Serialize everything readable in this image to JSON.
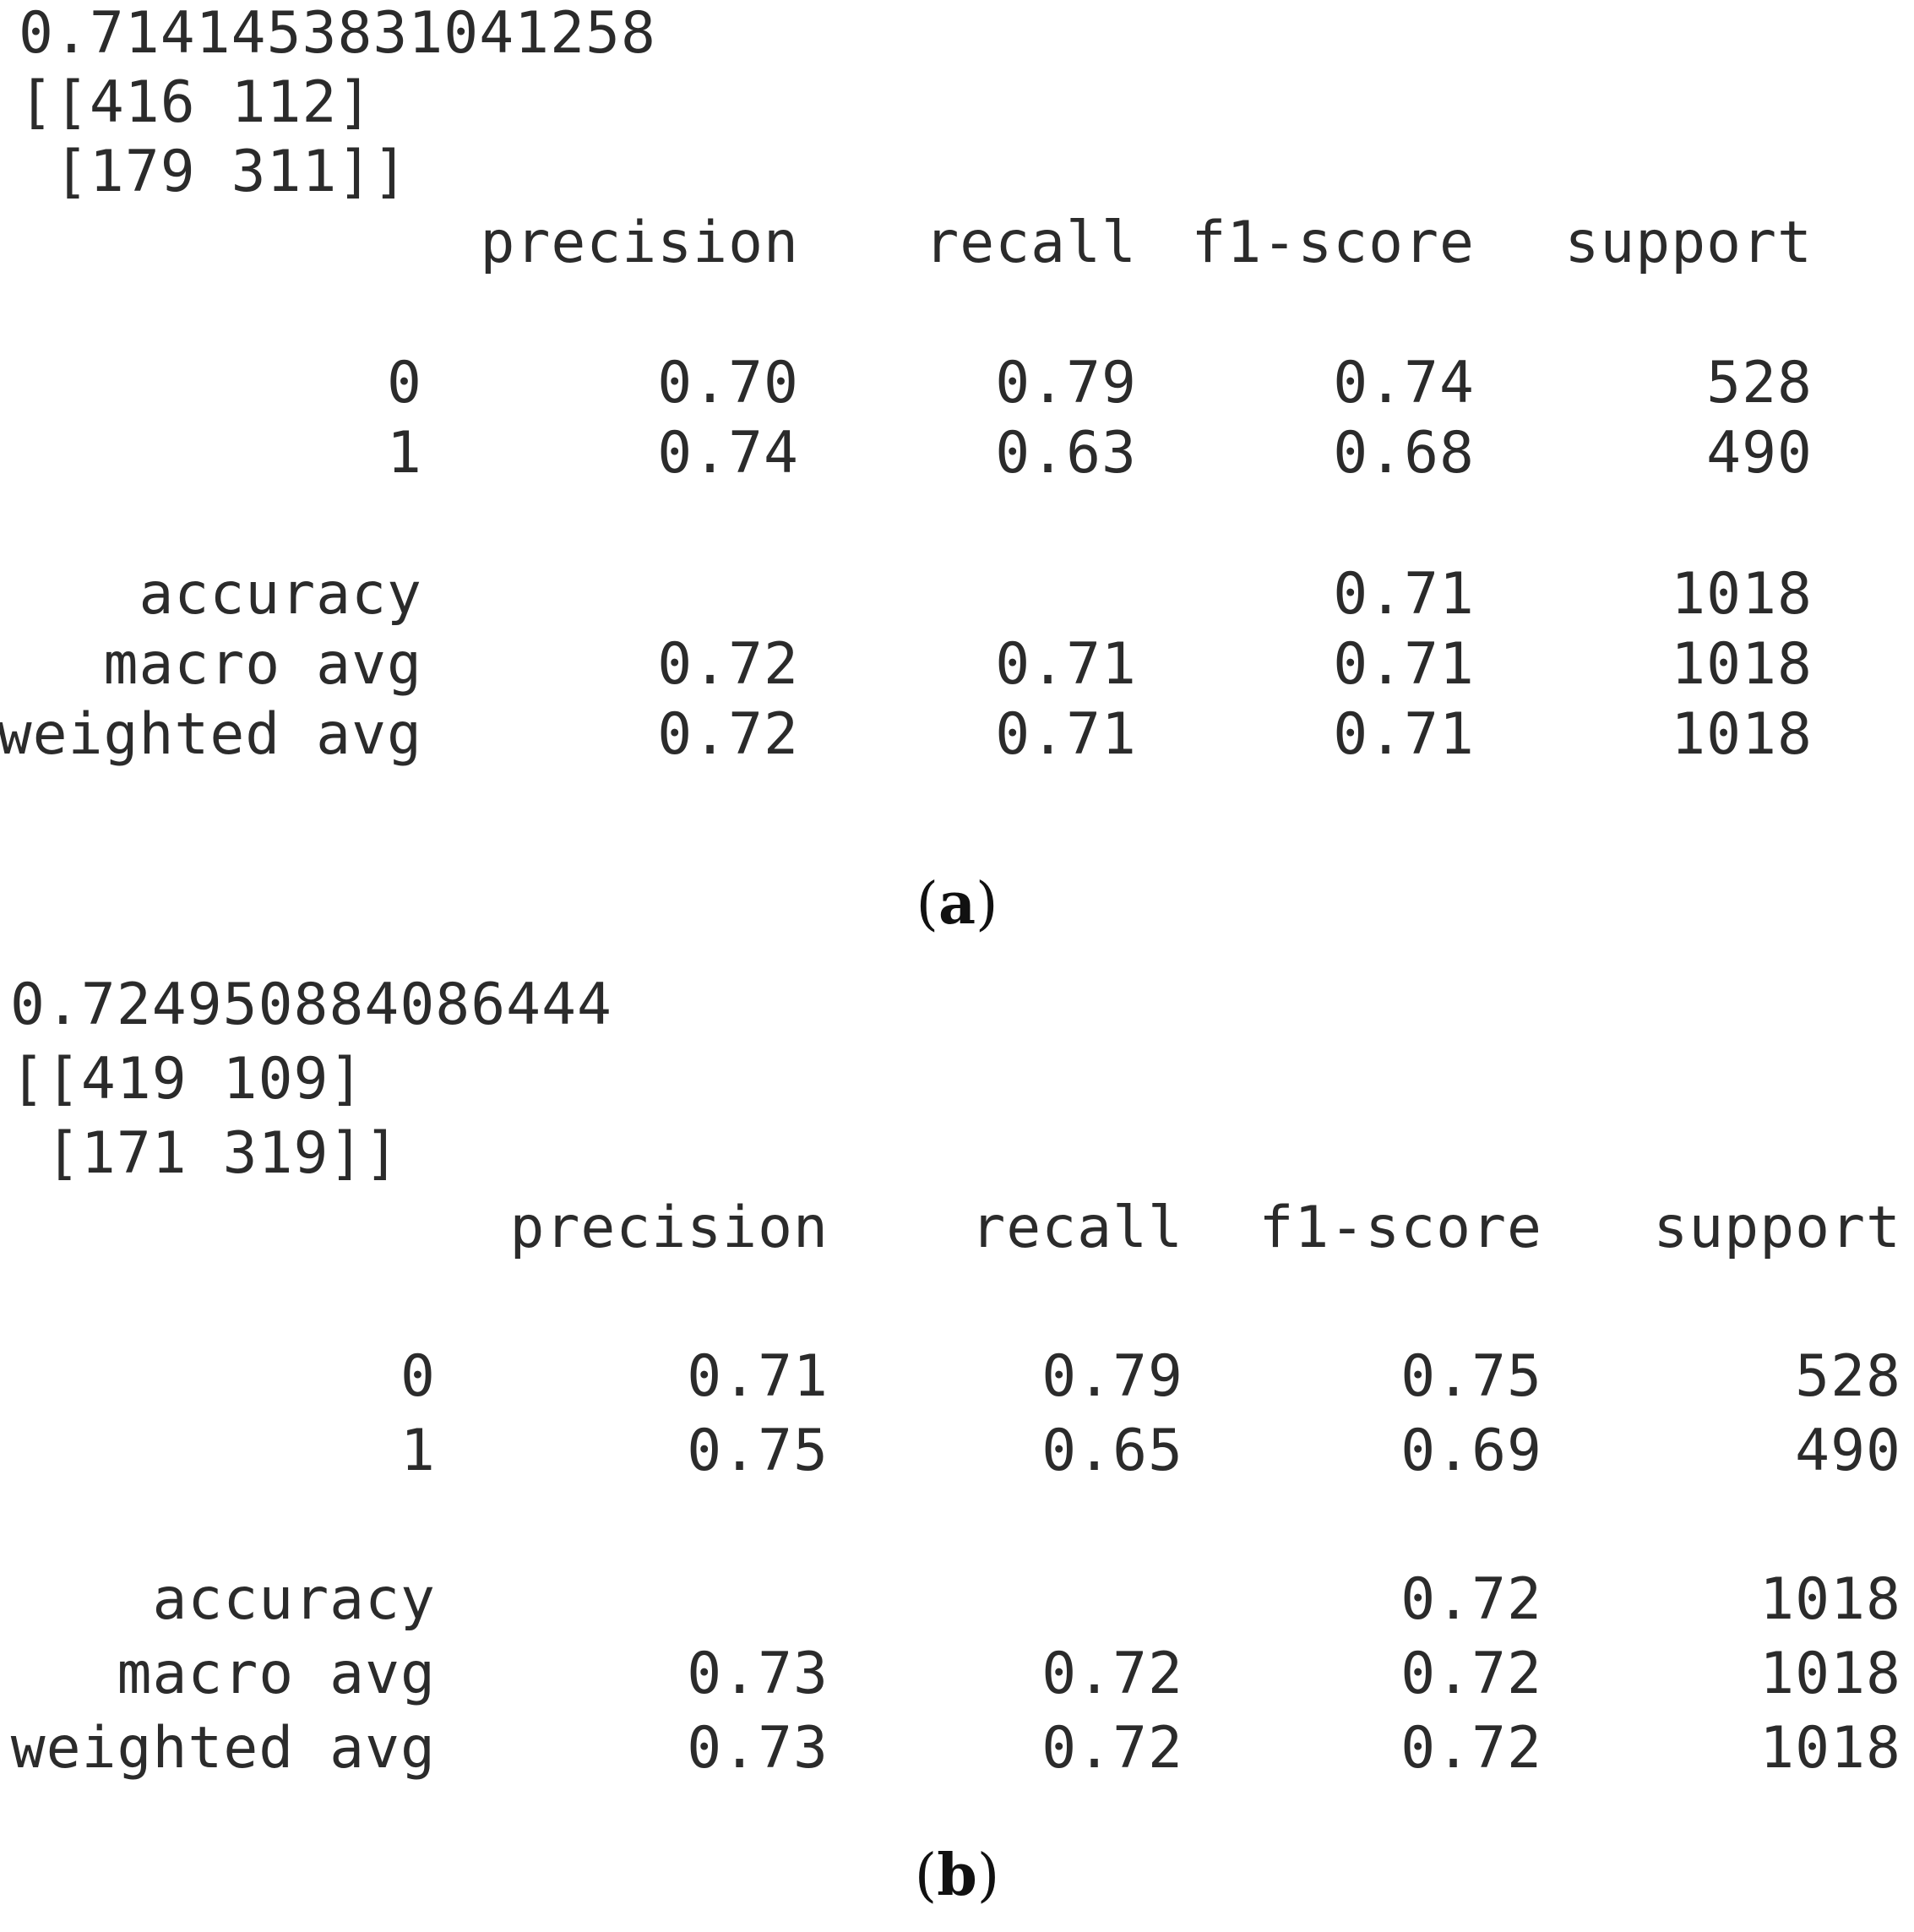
{
  "panels": [
    {
      "id": "a",
      "score": "0.7141453831041258",
      "matrix_line1": "[[416 112]",
      "matrix_line2": " [179 311]]",
      "headers": [
        "precision",
        "recall",
        "f1-score",
        "support"
      ],
      "rows": [
        {
          "label": "0",
          "precision": "0.70",
          "recall": "0.79",
          "f1": "0.74",
          "support": "528"
        },
        {
          "label": "1",
          "precision": "0.74",
          "recall": "0.63",
          "f1": "0.68",
          "support": "490"
        },
        {
          "label": "accuracy",
          "precision": "",
          "recall": "",
          "f1": "0.71",
          "support": "1018"
        },
        {
          "label": "macro avg",
          "precision": "0.72",
          "recall": "0.71",
          "f1": "0.71",
          "support": "1018"
        },
        {
          "label": "weighted avg",
          "precision": "0.72",
          "recall": "0.71",
          "f1": "0.71",
          "support": "1018"
        }
      ],
      "caption_open": "(",
      "caption_letter": "a",
      "caption_close": ")"
    },
    {
      "id": "b",
      "score": "0.724950884086444",
      "matrix_line1": "[[419 109]",
      "matrix_line2": " [171 319]]",
      "headers": [
        "precision",
        "recall",
        "f1-score",
        "support"
      ],
      "rows": [
        {
          "label": "0",
          "precision": "0.71",
          "recall": "0.79",
          "f1": "0.75",
          "support": "528"
        },
        {
          "label": "1",
          "precision": "0.75",
          "recall": "0.65",
          "f1": "0.69",
          "support": "490"
        },
        {
          "label": "accuracy",
          "precision": "",
          "recall": "",
          "f1": "0.72",
          "support": "1018"
        },
        {
          "label": "macro avg",
          "precision": "0.73",
          "recall": "0.72",
          "f1": "0.72",
          "support": "1018"
        },
        {
          "label": "weighted avg",
          "precision": "0.73",
          "recall": "0.72",
          "f1": "0.72",
          "support": "1018"
        }
      ],
      "caption_open": "(",
      "caption_letter": "b",
      "caption_close": ")"
    }
  ]
}
